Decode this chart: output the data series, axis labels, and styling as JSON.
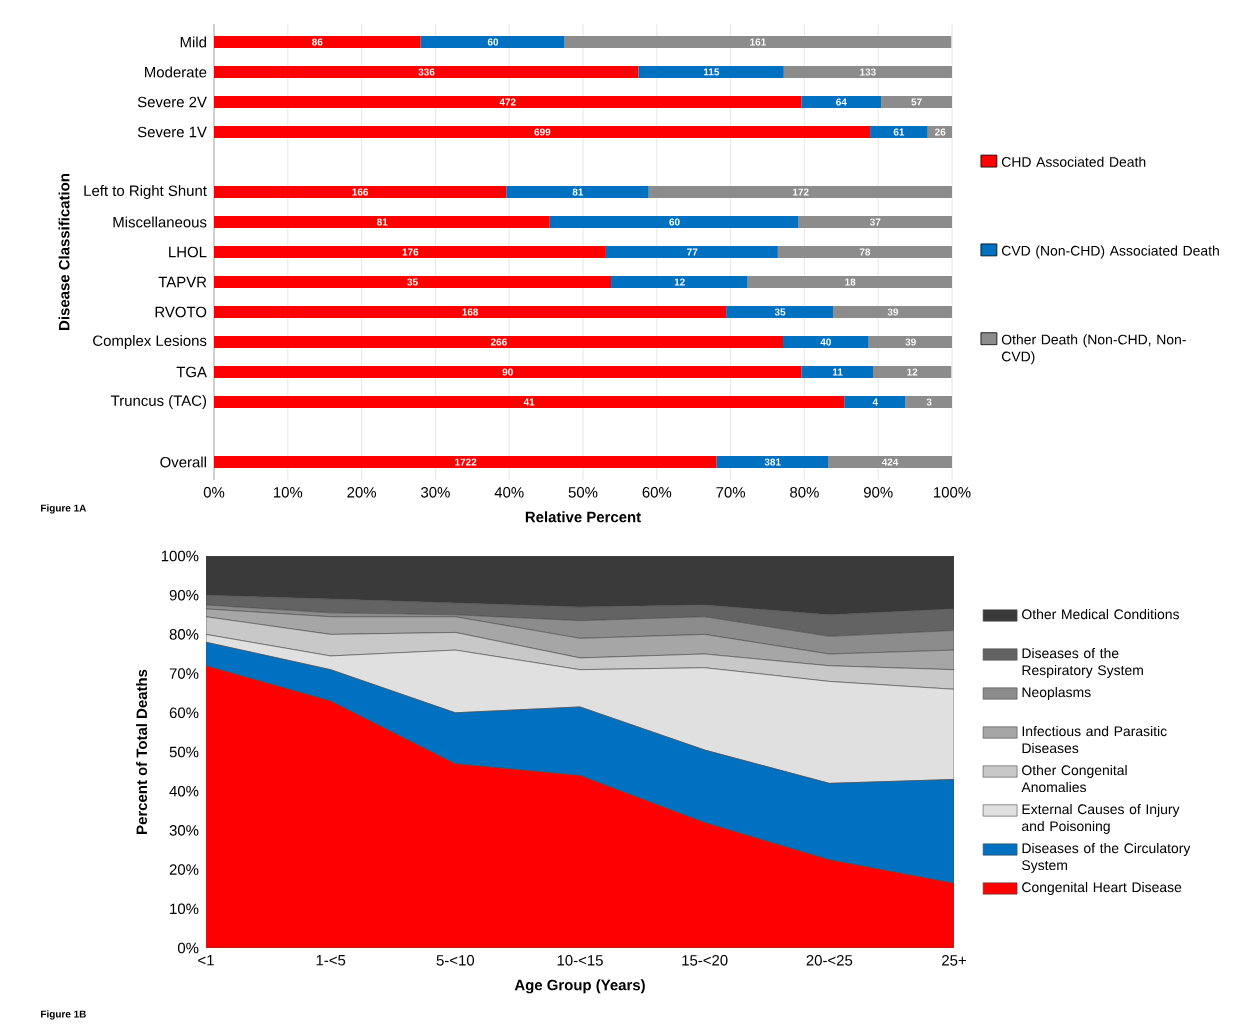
{
  "chart_data": [
    {
      "type": "bar",
      "orientation": "horizontal",
      "stacked": true,
      "xlabel": "Relative Percent",
      "ylabel": "Disease Classification",
      "categories": [
        "Mild",
        "Moderate",
        "Severe 2V",
        "Severe 1V",
        null,
        "Left to Right Shunt",
        "Miscellaneous",
        "LHOL",
        "TAPVR",
        "RVOTO",
        "Complex Lesions",
        "TGA",
        "Truncus (TAC)",
        null,
        "Overall"
      ],
      "series": [
        {
          "name": "CHD Associated Death",
          "color": "#ff0000",
          "values": [
            28.0,
            57.5,
            79.6,
            88.9,
            null,
            39.6,
            45.5,
            53.1,
            53.8,
            69.4,
            77.1,
            79.6,
            85.4,
            null,
            68.1
          ]
        },
        {
          "name": "CVD (Non-CHD) Associated Death",
          "color": "#0070c0",
          "values": [
            19.5,
            19.7,
            10.8,
            7.8,
            null,
            19.3,
            33.7,
            23.3,
            18.5,
            14.5,
            11.6,
            9.7,
            8.3,
            null,
            15.1
          ]
        },
        {
          "name": "Other Death (Non-CHD, Non-CVD)",
          "color": "#8c8c8c",
          "values": [
            52.4,
            22.8,
            9.6,
            3.3,
            null,
            41.1,
            20.8,
            23.6,
            27.7,
            16.1,
            11.3,
            10.6,
            6.3,
            null,
            16.8
          ]
        }
      ],
      "xlim": [
        0,
        100
      ],
      "xticks": [
        {
          "value": 0,
          "label": "0%"
        },
        {
          "value": 10,
          "label": "10%"
        },
        {
          "value": 20,
          "label": "20%"
        },
        {
          "value": 30,
          "label": "30%"
        },
        {
          "value": 40,
          "label": "40%"
        },
        {
          "value": 50,
          "label": "50%"
        },
        {
          "value": 60,
          "label": "60%"
        },
        {
          "value": 70,
          "label": "70%"
        },
        {
          "value": 80,
          "label": "80%"
        },
        {
          "value": 90,
          "label": "90%"
        },
        {
          "value": 100,
          "label": "100%"
        }
      ],
      "grid": "x",
      "legend": "right",
      "annotations": [
        "Figure 1A",
        {
          "text": "86",
          "x": 14.0,
          "y": "Mild"
        },
        {
          "text": "60",
          "x": 37.8,
          "y": "Mild"
        },
        {
          "text": "161",
          "x": 73.7,
          "y": "Mild"
        },
        {
          "text": "336",
          "x": 28.8,
          "y": "Moderate"
        },
        {
          "text": "115",
          "x": 67.4,
          "y": "Moderate"
        },
        {
          "text": "133",
          "x": 88.6,
          "y": "Moderate"
        },
        {
          "text": "472",
          "x": 39.8,
          "y": "Severe 2V"
        },
        {
          "text": "64",
          "x": 85.0,
          "y": "Severe 2V"
        },
        {
          "text": "57",
          "x": 95.2,
          "y": "Severe 2V"
        },
        {
          "text": "699",
          "x": 44.5,
          "y": "Severe 1V"
        },
        {
          "text": "61",
          "x": 92.8,
          "y": "Severe 1V"
        },
        {
          "text": "26",
          "x": 98.4,
          "y": "Severe 1V"
        },
        {
          "text": "166",
          "x": 19.8,
          "y": "Left to Right Shunt"
        },
        {
          "text": "81",
          "x": 49.3,
          "y": "Left to Right Shunt"
        },
        {
          "text": "172",
          "x": 79.5,
          "y": "Left to Right Shunt"
        },
        {
          "text": "81",
          "x": 22.8,
          "y": "Miscellaneous"
        },
        {
          "text": "60",
          "x": 62.4,
          "y": "Miscellaneous"
        },
        {
          "text": "37",
          "x": 89.6,
          "y": "Miscellaneous"
        },
        {
          "text": "176",
          "x": 26.6,
          "y": "LHOL"
        },
        {
          "text": "77",
          "x": 64.8,
          "y": "LHOL"
        },
        {
          "text": "78",
          "x": 88.2,
          "y": "LHOL"
        },
        {
          "text": "35",
          "x": 26.9,
          "y": "TAPVR"
        },
        {
          "text": "12",
          "x": 63.1,
          "y": "TAPVR"
        },
        {
          "text": "18",
          "x": 86.2,
          "y": "TAPVR"
        },
        {
          "text": "168",
          "x": 34.7,
          "y": "RVOTO"
        },
        {
          "text": "35",
          "x": 76.7,
          "y": "RVOTO"
        },
        {
          "text": "39",
          "x": 92.0,
          "y": "RVOTO"
        },
        {
          "text": "266",
          "x": 38.6,
          "y": "Complex Lesions"
        },
        {
          "text": "40",
          "x": 82.9,
          "y": "Complex Lesions"
        },
        {
          "text": "39",
          "x": 94.4,
          "y": "Complex Lesions"
        },
        {
          "text": "90",
          "x": 39.8,
          "y": "TGA"
        },
        {
          "text": "11",
          "x": 84.5,
          "y": "TGA"
        },
        {
          "text": "12",
          "x": 94.6,
          "y": "TGA"
        },
        {
          "text": "41",
          "x": 42.7,
          "y": "Truncus (TAC)"
        },
        {
          "text": "4",
          "x": 89.6,
          "y": "Truncus (TAC)"
        },
        {
          "text": "3",
          "x": 96.9,
          "y": "Truncus (TAC)"
        },
        {
          "text": "1722",
          "x": 34.1,
          "y": "Overall"
        },
        {
          "text": "381",
          "x": 75.7,
          "y": "Overall"
        },
        {
          "text": "424",
          "x": 91.6,
          "y": "Overall"
        }
      ]
    },
    {
      "type": "area",
      "stacked": true,
      "xlabel": "Age Group (Years)",
      "ylabel": "Percent of Total Deaths",
      "categories": [
        "<1",
        "1-<5",
        "5-<10",
        "10-<15",
        "15-<20",
        "20-<25",
        "25+"
      ],
      "series": [
        {
          "name": "Congenital Heart Disease",
          "color": "#ff0000",
          "values": [
            72,
            63,
            47,
            44,
            32,
            22.5,
            16.5
          ]
        },
        {
          "name": "Diseases of the Circulatory System",
          "color": "#0070c0",
          "values": [
            6,
            8,
            13,
            17.5,
            18.5,
            19.5,
            26.5
          ]
        },
        {
          "name": "External Causes of Injury and Poisoning",
          "color": "#e0e0e0",
          "values": [
            2,
            3.5,
            16,
            9.5,
            21,
            26,
            23
          ]
        },
        {
          "name": "Other Congenital Anomalies",
          "color": "#c8c8c8",
          "values": [
            4.5,
            5.5,
            4.5,
            3,
            3.5,
            4,
            5
          ]
        },
        {
          "name": "Infectious and Parasitic Diseases",
          "color": "#a6a6a6",
          "values": [
            2,
            4.5,
            4,
            5,
            5,
            3,
            5
          ]
        },
        {
          "name": "Neoplasms",
          "color": "#8c8c8c",
          "values": [
            1,
            1,
            0.5,
            4.5,
            4.5,
            4.5,
            5
          ]
        },
        {
          "name": "Diseases of the Respiratory System",
          "color": "#636363",
          "values": [
            2.5,
            3.5,
            3,
            3.5,
            3,
            5.5,
            5.5
          ]
        },
        {
          "name": "Other Medical Conditions",
          "color": "#3a3a3a",
          "values": [
            10,
            11,
            12,
            13,
            12.5,
            15,
            13.5
          ]
        }
      ],
      "ylim": [
        0,
        100
      ],
      "yticks": [
        {
          "value": 0,
          "label": "0%"
        },
        {
          "value": 10,
          "label": "10%"
        },
        {
          "value": 20,
          "label": "20%"
        },
        {
          "value": 30,
          "label": "30%"
        },
        {
          "value": 40,
          "label": "40%"
        },
        {
          "value": 50,
          "label": "50%"
        },
        {
          "value": 60,
          "label": "60%"
        },
        {
          "value": 70,
          "label": "70%"
        },
        {
          "value": 80,
          "label": "80%"
        },
        {
          "value": 90,
          "label": "90%"
        },
        {
          "value": 100,
          "label": "100%"
        }
      ],
      "legend": "right",
      "annotations": [
        "Figure 1B"
      ]
    }
  ]
}
